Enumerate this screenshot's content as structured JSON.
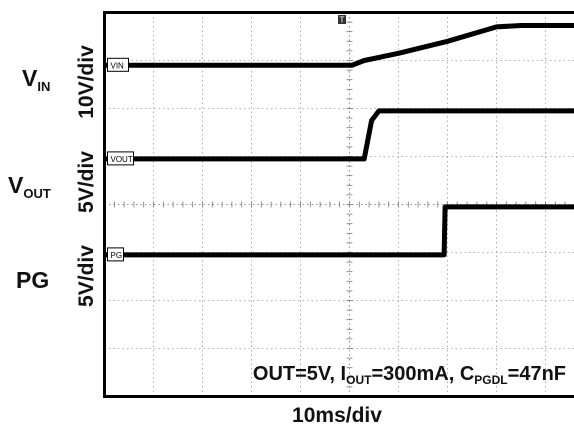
{
  "chart_data": {
    "type": "line",
    "x_scale_label": "10ms/div",
    "x_divisions": 10,
    "y_divisions": 8,
    "trigger_marker": "T",
    "annotation": {
      "prefix": "OUT=5V, I",
      "iout_sub": "OUT",
      "mid": "=300mA, C",
      "cap_sub": "PGDL",
      "suffix": "=47nF"
    },
    "channels": [
      {
        "name_main": "V",
        "name_sub": "IN",
        "scale": "10V/div",
        "tag": "VIN",
        "ground_div": 6.9,
        "volts_per_div": 10,
        "points": [
          [
            0,
            0
          ],
          [
            5.05,
            0
          ],
          [
            5.3,
            1.0
          ],
          [
            6.0,
            2.5
          ],
          [
            7.0,
            5.0
          ],
          [
            8.0,
            8.0
          ],
          [
            8.5,
            8.3
          ],
          [
            10,
            8.3
          ]
        ]
      },
      {
        "name_main": "V",
        "name_sub": "OUT",
        "scale": "5V/div",
        "tag": "VOUT",
        "ground_div": 4.95,
        "volts_per_div": 5,
        "points": [
          [
            0,
            0
          ],
          [
            5.3,
            0
          ],
          [
            5.45,
            4.0
          ],
          [
            5.6,
            5.0
          ],
          [
            10,
            5.0
          ]
        ]
      },
      {
        "name_main": "PG",
        "name_sub": "",
        "scale": "5V/div",
        "tag": "PG",
        "ground_div": 2.95,
        "volts_per_div": 5,
        "points": [
          [
            0,
            0
          ],
          [
            6.93,
            0
          ],
          [
            6.95,
            5.0
          ],
          [
            10,
            5.0
          ]
        ]
      }
    ]
  }
}
